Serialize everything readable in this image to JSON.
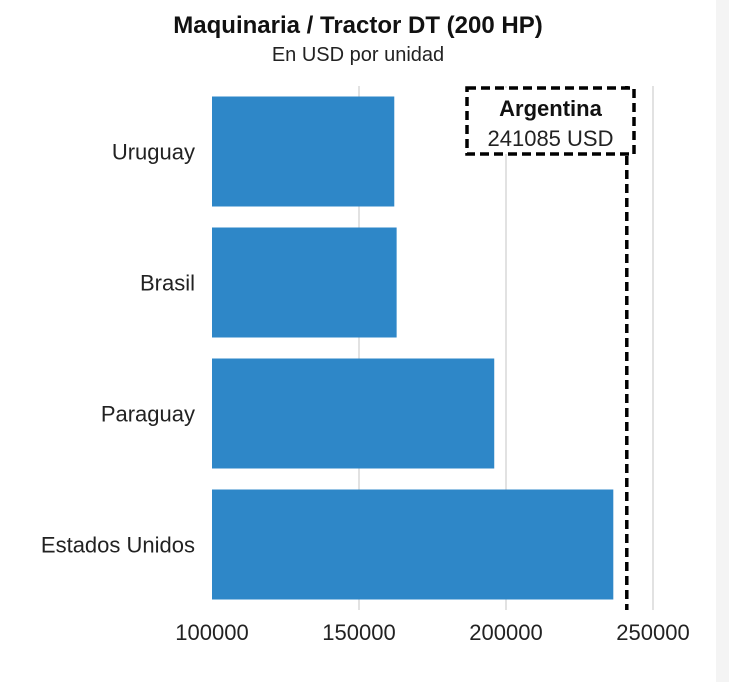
{
  "chart_data": {
    "type": "bar",
    "orientation": "horizontal",
    "title": "Maquinaria / Tractor DT (200 HP)",
    "subtitle": "En USD por unidad",
    "categories": [
      "Uruguay",
      "Brasil",
      "Paraguay",
      "Estados Unidos"
    ],
    "values": [
      162000,
      162800,
      196000,
      236500
    ],
    "xlim": [
      100000,
      260000
    ],
    "xticks": [
      "100000",
      "150000",
      "200000",
      "250000"
    ],
    "xtick_values": [
      100000,
      150000,
      200000,
      250000
    ],
    "grid": "vertical",
    "bar_color": "#2e87c8",
    "reference": {
      "label": "Argentina",
      "value": 241085,
      "value_label": "241085 USD",
      "line_style": "dashed",
      "color": "#000000"
    }
  }
}
